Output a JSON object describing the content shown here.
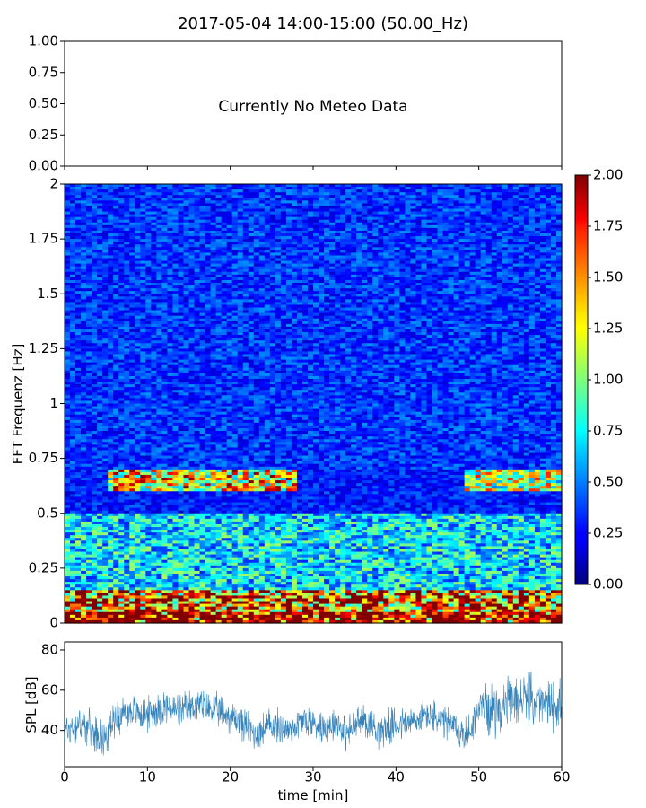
{
  "title": "2017-05-04 14:00-15:00 (50.00_Hz)",
  "meteo_message": "Currently No Meteo Data",
  "chart_data": [
    {
      "id": "meteo",
      "type": "line",
      "ylim": [
        0,
        1
      ],
      "yticks": [
        "0.00",
        "0.25",
        "0.50",
        "0.75",
        "1.00"
      ],
      "series": []
    },
    {
      "id": "spectrogram",
      "type": "heatmap",
      "ylabel": "FFT Frequenz [Hz]",
      "xlim": [
        0,
        60
      ],
      "ylim": [
        0,
        2
      ],
      "yticks": [
        "0",
        "0.25",
        "0.5",
        "0.75",
        "1",
        "1.25",
        "1.5",
        "1.75",
        "2"
      ],
      "colormap": "jet",
      "colorbar": {
        "range": [
          0,
          2
        ],
        "ticks": [
          "0.00",
          "0.25",
          "0.50",
          "0.75",
          "1.00",
          "1.25",
          "1.50",
          "1.75",
          "2.00"
        ]
      },
      "features": [
        {
          "freq_range": [
            0,
            0.15
          ],
          "level": 1.6
        },
        {
          "freq_range": [
            0.6,
            0.7
          ],
          "time_range": [
            5,
            28
          ],
          "level": 1.3
        },
        {
          "freq_range": [
            0.6,
            0.7
          ],
          "time_range": [
            48,
            60
          ],
          "level": 1.1
        },
        {
          "freq_range": [
            0.15,
            0.5
          ],
          "level": 0.7
        },
        {
          "freq_range": [
            0.7,
            2.0
          ],
          "level": 0.35
        }
      ]
    },
    {
      "id": "spl",
      "type": "line",
      "ylabel": "SPL [dB]",
      "xlabel": "time [min]",
      "xlim": [
        0,
        60
      ],
      "ylim": [
        22,
        84
      ],
      "xticks": [
        "0",
        "10",
        "20",
        "30",
        "40",
        "50",
        "60"
      ],
      "yticks": [
        "40",
        "60",
        "80"
      ],
      "series": [
        {
          "color": "#1f77b4",
          "x": [
            0,
            2,
            4,
            5,
            6,
            8,
            10,
            12,
            14,
            16,
            18,
            20,
            22,
            23,
            25,
            27,
            29,
            31,
            33,
            34,
            36,
            38,
            40,
            42,
            44,
            45,
            47,
            48,
            49,
            50,
            52,
            54,
            56,
            58,
            60
          ],
          "y": [
            40,
            44,
            38,
            36,
            46,
            50,
            48,
            52,
            49,
            53,
            50,
            47,
            42,
            38,
            43,
            40,
            45,
            42,
            44,
            38,
            46,
            40,
            43,
            44,
            48,
            45,
            42,
            38,
            40,
            52,
            50,
            54,
            56,
            52,
            54
          ]
        }
      ]
    }
  ]
}
